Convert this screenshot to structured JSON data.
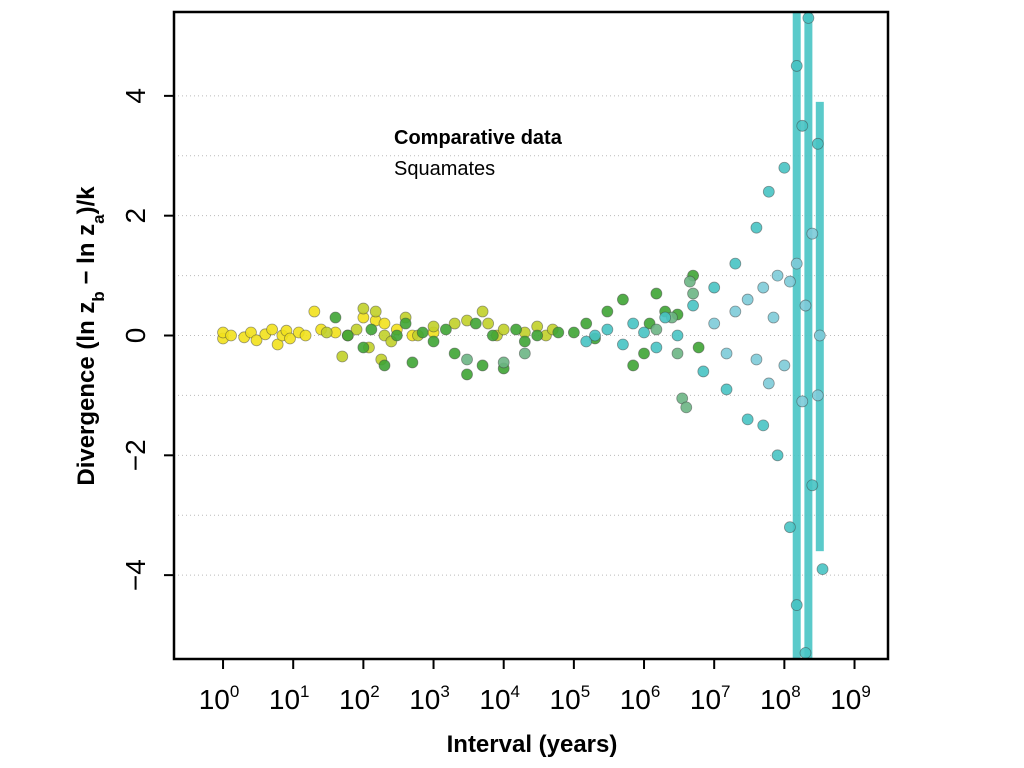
{
  "chart_data": {
    "type": "scatter",
    "xlabel": "Interval (years)",
    "ylabel_text": "Divergence (ln z",
    "ylabel_sub_b": "b",
    "ylabel_mid": " − ln z",
    "ylabel_sub_a": "a",
    "ylabel_tail": ")/k",
    "annotation_title": "Comparative data",
    "annotation_sub": "Squamates",
    "x_scale": "log10",
    "xlim": [
      0.2,
      3000000000
    ],
    "ylim": [
      -5.4,
      5.4
    ],
    "x_ticks": [
      {
        "base": "10",
        "exp": "0",
        "value": 1
      },
      {
        "base": "10",
        "exp": "1",
        "value": 10
      },
      {
        "base": "10",
        "exp": "2",
        "value": 100
      },
      {
        "base": "10",
        "exp": "3",
        "value": 1000
      },
      {
        "base": "10",
        "exp": "4",
        "value": 10000
      },
      {
        "base": "10",
        "exp": "5",
        "value": 100000
      },
      {
        "base": "10",
        "exp": "6",
        "value": 1000000
      },
      {
        "base": "10",
        "exp": "7",
        "value": 10000000
      },
      {
        "base": "10",
        "exp": "8",
        "value": 100000000
      },
      {
        "base": "10",
        "exp": "9",
        "value": 1000000000
      }
    ],
    "y_ticks": [
      {
        "label": "−4",
        "value": -4
      },
      {
        "label": "−2",
        "value": -2
      },
      {
        "label": "0",
        "value": 0
      },
      {
        "label": "2",
        "value": 2
      },
      {
        "label": "4",
        "value": 4
      }
    ],
    "y_gridlines": [
      -4,
      -3,
      -2,
      -1,
      0,
      1,
      2,
      3,
      4
    ],
    "grid": "horizontal dotted",
    "colors": {
      "yellow": "#f2e21c",
      "yellowgreen": "#c2d12a",
      "green": "#3fa535",
      "teal": "#6cb584",
      "cyan": "#48c4c4",
      "lightblue": "#7ecbd9"
    },
    "series": [
      {
        "color": "yellow",
        "points": [
          [
            1,
            -0.05
          ],
          [
            1,
            0.05
          ],
          [
            1.3,
            0.0
          ],
          [
            2,
            -0.03
          ],
          [
            2.5,
            0.05
          ],
          [
            3,
            -0.08
          ],
          [
            4,
            0.02
          ],
          [
            5,
            0.1
          ],
          [
            6,
            -0.15
          ],
          [
            7,
            0.0
          ],
          [
            8,
            0.08
          ],
          [
            9,
            -0.05
          ],
          [
            12,
            0.05
          ],
          [
            15,
            0.0
          ],
          [
            20,
            0.4
          ],
          [
            25,
            0.1
          ],
          [
            40,
            0.05
          ],
          [
            100,
            0.3
          ],
          [
            150,
            0.25
          ],
          [
            200,
            0.2
          ],
          [
            300,
            0.1
          ],
          [
            500,
            0.0
          ],
          [
            1000,
            0.05
          ]
        ]
      },
      {
        "color": "yellowgreen",
        "points": [
          [
            30,
            0.05
          ],
          [
            50,
            -0.35
          ],
          [
            60,
            0.0
          ],
          [
            80,
            0.1
          ],
          [
            100,
            0.45
          ],
          [
            120,
            -0.2
          ],
          [
            150,
            0.4
          ],
          [
            180,
            -0.4
          ],
          [
            200,
            0.0
          ],
          [
            250,
            -0.1
          ],
          [
            400,
            0.3
          ],
          [
            600,
            0.0
          ],
          [
            1000,
            0.15
          ],
          [
            2000,
            0.2
          ],
          [
            3000,
            0.25
          ],
          [
            5000,
            0.4
          ],
          [
            6000,
            0.2
          ],
          [
            8000,
            0.0
          ],
          [
            10000,
            0.1
          ],
          [
            20000,
            0.05
          ],
          [
            30000,
            0.15
          ],
          [
            40000,
            0.0
          ],
          [
            50000,
            0.1
          ]
        ]
      },
      {
        "color": "green",
        "points": [
          [
            40,
            0.3
          ],
          [
            60,
            0.0
          ],
          [
            100,
            -0.2
          ],
          [
            130,
            0.1
          ],
          [
            200,
            -0.5
          ],
          [
            300,
            0.0
          ],
          [
            400,
            0.2
          ],
          [
            500,
            -0.45
          ],
          [
            700,
            0.05
          ],
          [
            1000,
            -0.1
          ],
          [
            1500,
            0.1
          ],
          [
            2000,
            -0.3
          ],
          [
            3000,
            -0.65
          ],
          [
            4000,
            0.2
          ],
          [
            5000,
            -0.5
          ],
          [
            7000,
            0.0
          ],
          [
            10000,
            -0.55
          ],
          [
            15000,
            0.1
          ],
          [
            20000,
            -0.1
          ],
          [
            30000,
            0.0
          ],
          [
            60000,
            0.05
          ],
          [
            100000,
            0.05
          ],
          [
            150000,
            0.2
          ],
          [
            200000,
            -0.05
          ],
          [
            300000,
            0.4
          ],
          [
            500000,
            0.6
          ],
          [
            700000,
            -0.5
          ],
          [
            1000000,
            -0.3
          ],
          [
            1200000,
            0.2
          ],
          [
            1500000,
            0.7
          ],
          [
            2000000,
            0.4
          ],
          [
            3000000,
            0.35
          ],
          [
            5000000,
            1.0
          ],
          [
            6000000,
            -0.2
          ]
        ]
      },
      {
        "color": "teal",
        "points": [
          [
            3000,
            -0.4
          ],
          [
            10000,
            -0.45
          ],
          [
            20000,
            -0.3
          ],
          [
            1500000,
            0.1
          ],
          [
            2500000,
            0.3
          ],
          [
            3000000,
            -0.3
          ],
          [
            3500000,
            -1.05
          ],
          [
            4000000,
            -1.2
          ],
          [
            4500000,
            0.9
          ],
          [
            5000000,
            0.7
          ]
        ]
      },
      {
        "color": "cyan",
        "points": [
          [
            150000,
            -0.1
          ],
          [
            200000,
            0.0
          ],
          [
            300000,
            0.1
          ],
          [
            500000,
            -0.15
          ],
          [
            700000,
            0.2
          ],
          [
            1000000,
            0.05
          ],
          [
            1500000,
            -0.2
          ],
          [
            2000000,
            0.3
          ],
          [
            3000000,
            0.0
          ],
          [
            5000000,
            0.5
          ],
          [
            7000000,
            -0.6
          ],
          [
            10000000,
            0.8
          ],
          [
            15000000,
            -0.9
          ],
          [
            20000000,
            1.2
          ],
          [
            30000000,
            -1.4
          ],
          [
            40000000,
            1.8
          ],
          [
            50000000,
            -1.5
          ],
          [
            60000000,
            2.4
          ],
          [
            80000000,
            -2.0
          ],
          [
            100000000,
            2.8
          ],
          [
            120000000,
            -3.2
          ],
          [
            150000000,
            -4.5
          ],
          [
            150000000,
            4.5
          ],
          [
            180000000,
            3.5
          ],
          [
            200000000,
            -5.3
          ],
          [
            220000000,
            5.3
          ],
          [
            250000000,
            -2.5
          ],
          [
            300000000,
            3.2
          ],
          [
            350000000,
            -3.9
          ]
        ]
      },
      {
        "color": "lightblue",
        "points": [
          [
            10000000,
            0.2
          ],
          [
            15000000,
            -0.3
          ],
          [
            20000000,
            0.4
          ],
          [
            30000000,
            0.6
          ],
          [
            40000000,
            -0.4
          ],
          [
            50000000,
            0.8
          ],
          [
            60000000,
            -0.8
          ],
          [
            70000000,
            0.3
          ],
          [
            80000000,
            1.0
          ],
          [
            100000000,
            -0.5
          ],
          [
            120000000,
            0.9
          ],
          [
            150000000,
            1.2
          ],
          [
            180000000,
            -1.1
          ],
          [
            200000000,
            0.5
          ],
          [
            250000000,
            1.7
          ],
          [
            300000000,
            -1.0
          ],
          [
            320000000,
            0.0
          ]
        ]
      }
    ],
    "bands": [
      {
        "color": "cyan",
        "x": 150000000,
        "ymin": -5.4,
        "ymax": 5.4
      },
      {
        "color": "cyan",
        "x": 220000000,
        "ymin": -5.4,
        "ymax": 5.4
      },
      {
        "color": "cyan",
        "x": 320000000,
        "ymin": -3.6,
        "ymax": 3.9
      }
    ]
  }
}
